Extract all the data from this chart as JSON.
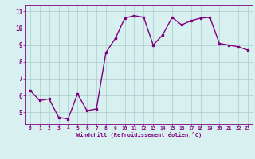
{
  "x": [
    0,
    1,
    2,
    3,
    4,
    5,
    6,
    7,
    8,
    9,
    10,
    11,
    12,
    13,
    14,
    15,
    16,
    17,
    18,
    19,
    20,
    21,
    22,
    23
  ],
  "y": [
    6.3,
    5.7,
    5.8,
    4.7,
    4.6,
    6.1,
    5.1,
    5.2,
    8.55,
    9.4,
    10.6,
    10.75,
    10.65,
    9.0,
    9.6,
    10.65,
    10.2,
    10.45,
    10.6,
    10.65,
    9.1,
    9.0,
    8.9,
    8.7
  ],
  "line_color": "#800080",
  "marker": "s",
  "marker_size": 1.8,
  "bg_color": "#d8f0f0",
  "grid_color": "#aacccc",
  "xlabel": "Windchill (Refroidissement éolien,°C)",
  "xlabel_color": "#800080",
  "tick_color": "#800080",
  "ylim": [
    4.3,
    11.4
  ],
  "xlim": [
    -0.5,
    23.5
  ],
  "yticks": [
    5,
    6,
    7,
    8,
    9,
    10,
    11
  ],
  "xticks": [
    0,
    1,
    2,
    3,
    4,
    5,
    6,
    7,
    8,
    9,
    10,
    11,
    12,
    13,
    14,
    15,
    16,
    17,
    18,
    19,
    20,
    21,
    22,
    23
  ],
  "spine_color": "#800080",
  "line_width": 1.0
}
